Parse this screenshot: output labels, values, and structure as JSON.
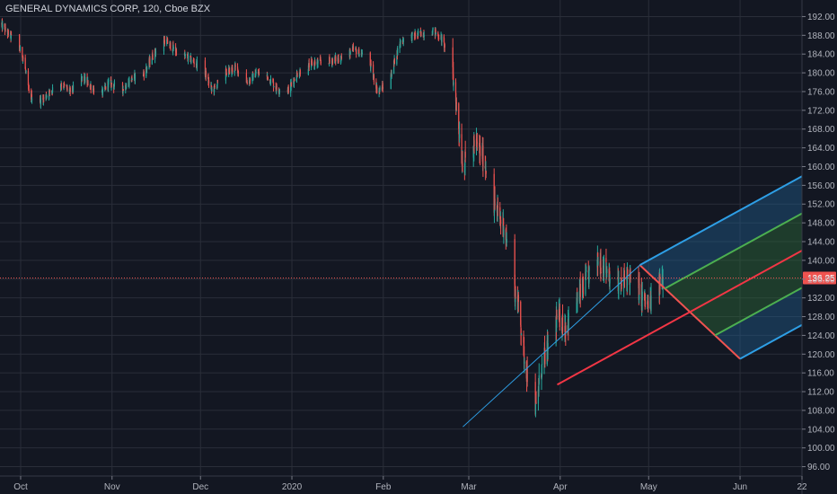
{
  "chart_data": {
    "type": "candlestick",
    "title": "GENERAL DYNAMICS CORP, 120, Cboe BZX",
    "ylim": [
      94,
      194
    ],
    "yticks": [
      96,
      100,
      104,
      108,
      112,
      116,
      120,
      124,
      128,
      132,
      136,
      140,
      144,
      148,
      152,
      156,
      160,
      164,
      168,
      172,
      176,
      180,
      184,
      188,
      192
    ],
    "ytick_labels": [
      "96.00",
      "100.00",
      "104.00",
      "108.00",
      "112.00",
      "116.00",
      "120.00",
      "124.00",
      "128.00",
      "132.00",
      "136.00",
      "140.00",
      "144.00",
      "148.00",
      "152.00",
      "156.00",
      "160.00",
      "164.00",
      "168.00",
      "172.00",
      "176.00",
      "180.00",
      "184.00",
      "188.00",
      "192.00"
    ],
    "x_date_range": [
      "2019-09-24",
      "2020-06-22"
    ],
    "xticks": [
      {
        "date": "2019-10-01",
        "label": "Oct"
      },
      {
        "date": "2019-11-01",
        "label": "Nov"
      },
      {
        "date": "2019-12-01",
        "label": "Dec"
      },
      {
        "date": "2020-01-01",
        "label": "2020"
      },
      {
        "date": "2020-02-01",
        "label": "Feb"
      },
      {
        "date": "2020-03-01",
        "label": "Mar"
      },
      {
        "date": "2020-04-01",
        "label": "Apr"
      },
      {
        "date": "2020-05-01",
        "label": "May"
      },
      {
        "date": "2020-06-01",
        "label": "Jun"
      },
      {
        "date": "2020-06-22",
        "label": "22"
      }
    ],
    "last_price": 136.25,
    "last_price_label": "136.25",
    "price_path": [
      [
        "2019-09-24",
        190.5
      ],
      [
        "2019-09-30",
        186
      ],
      [
        "2019-10-02",
        183
      ],
      [
        "2019-10-04",
        175
      ],
      [
        "2019-10-08",
        174
      ],
      [
        "2019-10-14",
        178
      ],
      [
        "2019-10-18",
        176
      ],
      [
        "2019-10-22",
        179
      ],
      [
        "2019-10-28",
        175
      ],
      [
        "2019-10-31",
        178
      ],
      [
        "2019-11-04",
        176
      ],
      [
        "2019-11-08",
        179
      ],
      [
        "2019-11-12",
        180
      ],
      [
        "2019-11-15",
        184
      ],
      [
        "2019-11-19",
        187
      ],
      [
        "2019-11-22",
        185
      ],
      [
        "2019-11-27",
        183
      ],
      [
        "2019-12-02",
        181
      ],
      [
        "2019-12-05",
        176
      ],
      [
        "2019-12-09",
        180
      ],
      [
        "2019-12-13",
        181
      ],
      [
        "2019-12-17",
        178
      ],
      [
        "2019-12-20",
        180
      ],
      [
        "2019-12-24",
        179
      ],
      [
        "2019-12-27",
        176.5
      ],
      [
        "2019-12-31",
        176.5
      ],
      [
        "2020-01-03",
        180
      ],
      [
        "2020-01-08",
        182
      ],
      [
        "2020-01-13",
        182.5
      ],
      [
        "2020-01-17",
        183
      ],
      [
        "2020-01-22",
        185
      ],
      [
        "2020-01-27",
        183
      ],
      [
        "2020-01-30",
        176
      ],
      [
        "2020-02-03",
        178
      ],
      [
        "2020-02-05",
        183
      ],
      [
        "2020-02-07",
        187
      ],
      [
        "2020-02-12",
        188
      ],
      [
        "2020-02-18",
        189
      ],
      [
        "2020-02-21",
        187
      ],
      [
        "2020-02-24",
        182
      ],
      [
        "2020-02-26",
        172
      ],
      [
        "2020-02-28",
        160
      ],
      [
        "2020-03-03",
        165
      ],
      [
        "2020-03-06",
        162
      ],
      [
        "2020-03-09",
        153
      ],
      [
        "2020-03-12",
        148
      ],
      [
        "2020-03-13",
        147.5
      ],
      [
        "2020-03-16",
        135
      ],
      [
        "2020-03-18",
        130
      ],
      [
        "2020-03-20",
        118
      ],
      [
        "2020-03-23",
        110
      ],
      [
        "2020-03-24",
        108
      ],
      [
        "2020-03-25",
        115
      ],
      [
        "2020-03-27",
        120
      ],
      [
        "2020-03-31",
        128
      ],
      [
        "2020-04-03",
        126
      ],
      [
        "2020-04-07",
        132
      ],
      [
        "2020-04-10",
        136
      ],
      [
        "2020-04-14",
        140
      ],
      [
        "2020-04-17",
        138
      ],
      [
        "2020-04-21",
        134
      ],
      [
        "2020-04-24",
        137
      ],
      [
        "2020-04-28",
        133
      ],
      [
        "2020-04-30",
        131
      ],
      [
        "2020-05-01",
        130
      ],
      [
        "2020-05-04",
        134
      ],
      [
        "2020-05-06",
        136.25
      ]
    ],
    "pitchfork": {
      "type": "schiff_pitchfork",
      "points": [
        {
          "date": "2020-02-28",
          "price": 104.5
        },
        {
          "date": "2020-04-28",
          "price": 139
        },
        {
          "date": "2020-06-01",
          "price": 119
        }
      ],
      "median_start": {
        "date": "2020-03-31",
        "price": 113.5
      },
      "end_date": "2020-06-22",
      "levels": [
        {
          "offset": -1.0,
          "color": "#2e9fe6"
        },
        {
          "offset": -0.5,
          "color": "#4caf50"
        },
        {
          "offset": 0,
          "color": "#f23645"
        },
        {
          "offset": 0.5,
          "color": "#4caf50"
        },
        {
          "offset": 1.0,
          "color": "#2e9fe6"
        }
      ]
    },
    "colors": {
      "background": "#131722",
      "grid": "#2a2e39",
      "up": "#26a69a",
      "down": "#ef5350",
      "price_line": "#ef5350",
      "price_label_bg": "#ef5350",
      "trendline": "#2e9fe6",
      "fill_outer": "#1e5a8a",
      "fill_inner": "#2d6b3a"
    }
  }
}
